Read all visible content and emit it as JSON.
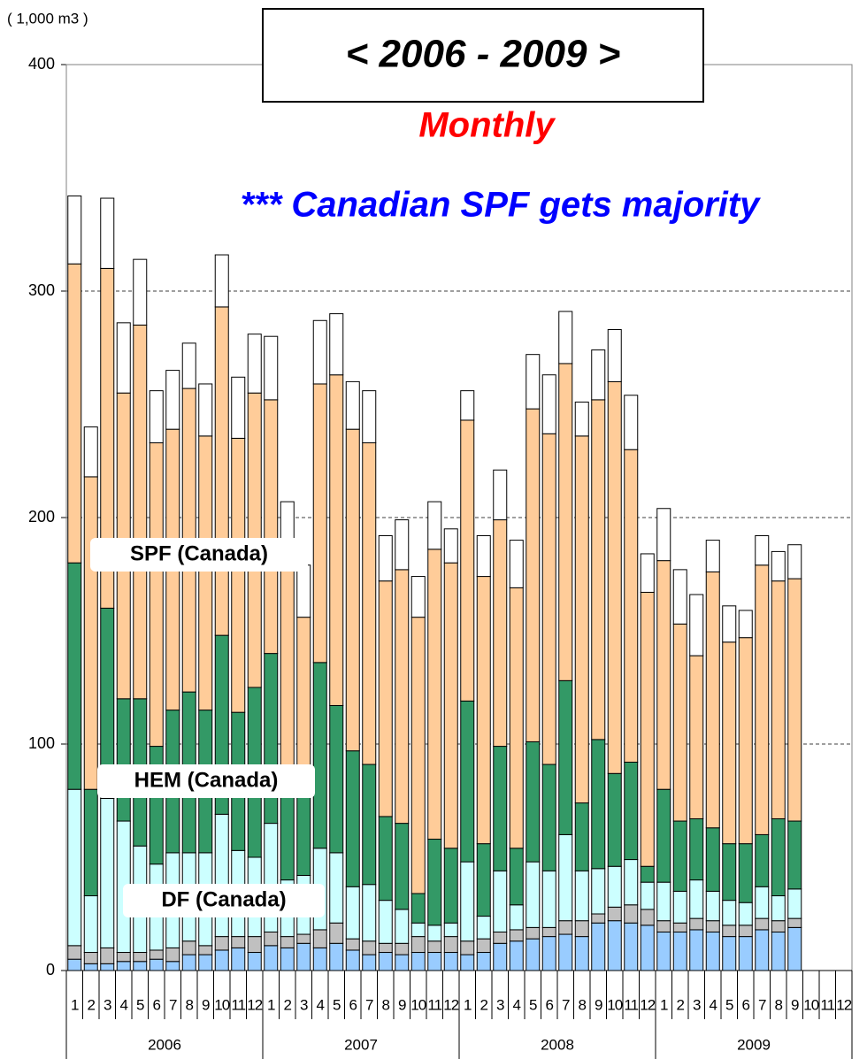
{
  "chart_data": {
    "type": "stacked_bar",
    "title": "< 2006 - 2009 >",
    "subtitle": "Monthly",
    "annotation": "*** Canadian SPF gets majority",
    "unit_label": "( 1,000 m3 )",
    "categories": [
      "1",
      "2",
      "3",
      "4",
      "5",
      "6",
      "7",
      "8",
      "9",
      "10",
      "11",
      "12",
      "1",
      "2",
      "3",
      "4",
      "5",
      "6",
      "7",
      "8",
      "9",
      "10",
      "11",
      "12",
      "1",
      "2",
      "3",
      "4",
      "5",
      "6",
      "7",
      "8",
      "9",
      "10",
      "11",
      "12",
      "1",
      "2",
      "3",
      "4",
      "5",
      "6",
      "7",
      "8",
      "9",
      "10",
      "11",
      "12"
    ],
    "groups": [
      "2006",
      "2007",
      "2008",
      "2009"
    ],
    "ylim": [
      0,
      400
    ],
    "yticks": [
      0,
      100,
      200,
      300,
      400
    ],
    "grid": true,
    "series": [
      {
        "color": "#99ccff",
        "values": [
          5,
          3,
          3,
          4,
          4,
          5,
          4,
          7,
          7,
          9,
          10,
          8,
          11,
          10,
          12,
          10,
          12,
          9,
          7,
          8,
          7,
          8,
          8,
          8,
          7,
          8,
          12,
          13,
          14,
          15,
          16,
          15,
          21,
          22,
          21,
          20,
          17,
          17,
          18,
          17,
          15,
          15,
          18,
          17,
          19,
          null,
          null,
          null
        ]
      },
      {
        "color": "#c0c0c0",
        "values": [
          6,
          5,
          7,
          4,
          4,
          4,
          6,
          6,
          4,
          6,
          5,
          7,
          6,
          5,
          4,
          8,
          9,
          5,
          6,
          4,
          5,
          7,
          5,
          7,
          6,
          6,
          5,
          5,
          5,
          4,
          6,
          7,
          4,
          6,
          8,
          7,
          5,
          4,
          5,
          5,
          5,
          5,
          5,
          5,
          4,
          null,
          null,
          null
        ]
      },
      {
        "name": "DF (Canada)",
        "color": "#ccffff",
        "values": [
          69,
          25,
          66,
          58,
          47,
          38,
          42,
          39,
          41,
          54,
          38,
          35,
          48,
          25,
          26,
          36,
          31,
          23,
          25,
          19,
          15,
          6,
          7,
          6,
          35,
          10,
          27,
          11,
          29,
          25,
          38,
          22,
          20,
          18,
          20,
          12,
          17,
          14,
          17,
          13,
          11,
          10,
          14,
          11,
          13,
          null,
          null,
          null
        ]
      },
      {
        "name": "HEM (Canada)",
        "color": "#339966",
        "values": [
          100,
          47,
          84,
          54,
          65,
          52,
          63,
          71,
          63,
          79,
          61,
          75,
          75,
          40,
          38,
          82,
          65,
          60,
          53,
          37,
          38,
          13,
          38,
          33,
          71,
          32,
          55,
          25,
          53,
          47,
          68,
          30,
          57,
          41,
          43,
          7,
          41,
          31,
          27,
          28,
          25,
          26,
          23,
          34,
          30,
          null,
          null,
          null
        ]
      },
      {
        "name": "SPF (Canada)",
        "color": "#ffcc99",
        "values": [
          132,
          138,
          150,
          135,
          165,
          134,
          124,
          134,
          121,
          145,
          121,
          130,
          112,
          107,
          76,
          123,
          146,
          142,
          142,
          104,
          112,
          122,
          128,
          126,
          124,
          118,
          100,
          115,
          147,
          146,
          140,
          162,
          150,
          173,
          138,
          121,
          101,
          87,
          72,
          113,
          89,
          91,
          119,
          105,
          107,
          null,
          null,
          null
        ]
      },
      {
        "color": "#ffffff",
        "values": [
          30,
          22,
          31,
          31,
          29,
          23,
          26,
          20,
          23,
          23,
          27,
          26,
          28,
          20,
          23,
          28,
          27,
          21,
          23,
          20,
          22,
          18,
          21,
          15,
          13,
          18,
          22,
          21,
          24,
          26,
          23,
          15,
          22,
          23,
          24,
          17,
          23,
          24,
          27,
          14,
          16,
          12,
          13,
          13,
          15,
          null,
          null,
          null
        ]
      }
    ]
  }
}
